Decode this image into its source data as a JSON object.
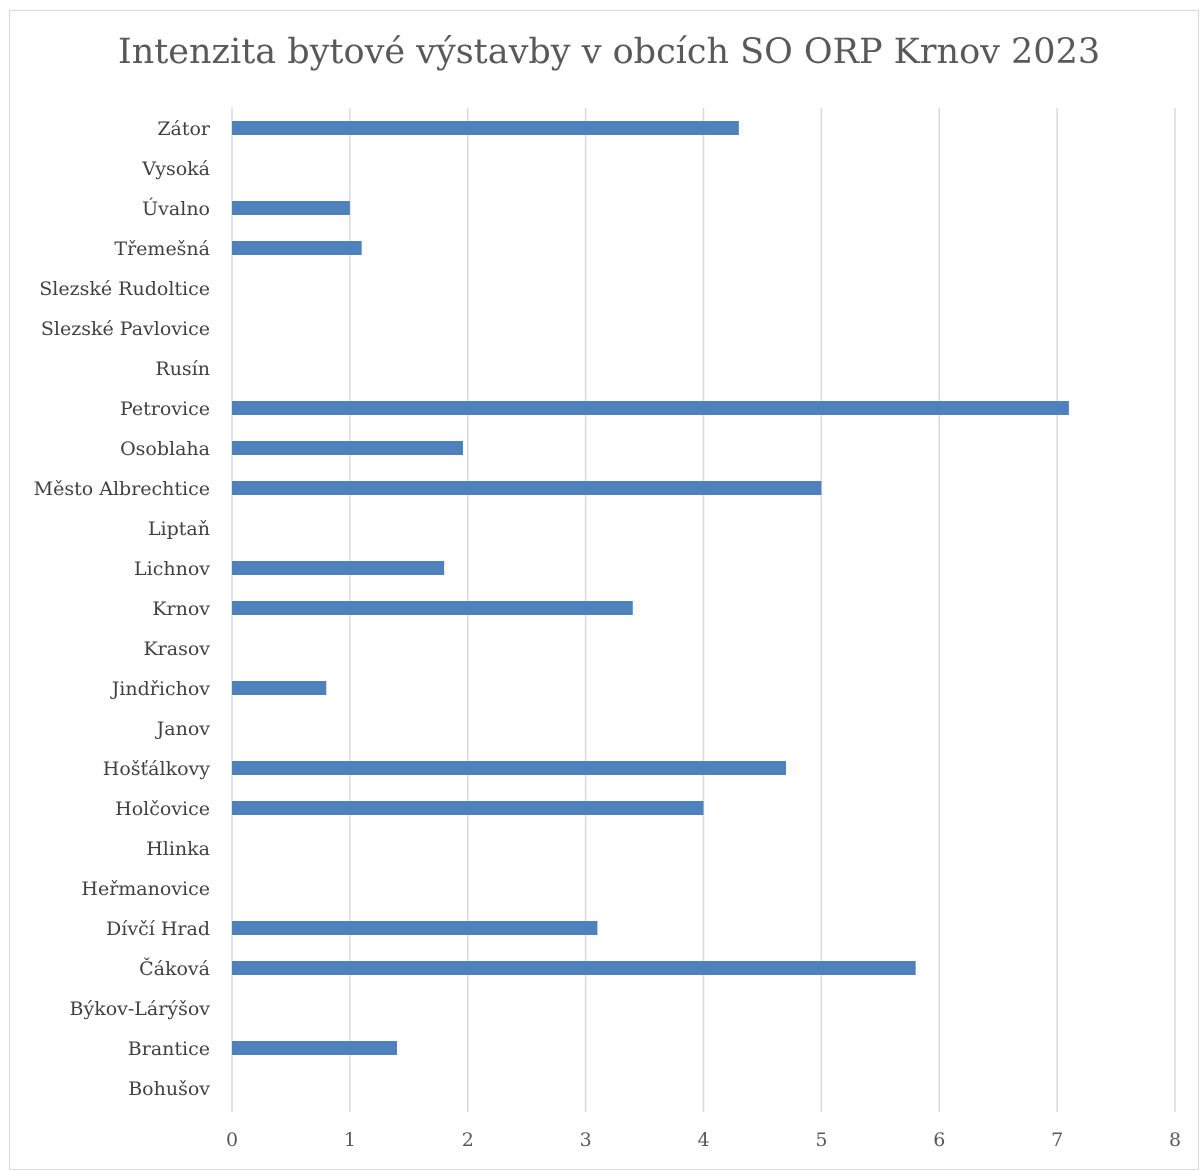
{
  "chart_data": {
    "type": "bar",
    "orientation": "horizontal",
    "title": "Intenzita bytové výstavby v obcích SO ORP Krnov 2023",
    "xlabel": "",
    "ylabel": "",
    "categories": [
      "Zátor",
      "Vysoká",
      "Úvalno",
      "Třemešná",
      "Slezské Rudoltice",
      "Slezské Pavlovice",
      "Rusín",
      "Petrovice",
      "Osoblaha",
      "Město Albrechtice",
      "Liptaň",
      "Lichnov",
      "Krnov",
      "Krasov",
      "Jindřichov",
      "Janov",
      "Hošťálkovy",
      "Holčovice",
      "Hlinka",
      "Heřmanovice",
      "Dívčí Hrad",
      "Čáková",
      "Býkov-Lárýšov",
      "Brantice",
      "Bohušov"
    ],
    "values": [
      4.3,
      0,
      1.0,
      1.1,
      0,
      0,
      0,
      7.1,
      1.96,
      5.0,
      0,
      1.8,
      3.4,
      0,
      0.8,
      0,
      4.7,
      4.0,
      0,
      0,
      3.1,
      5.8,
      0,
      1.4,
      0
    ],
    "xlim": [
      0,
      8
    ],
    "xticks": [
      "0",
      "1",
      "2",
      "3",
      "4",
      "5",
      "6",
      "7",
      "8"
    ],
    "grid": "vertical",
    "legend": "none",
    "bar_color": "#4f81bd",
    "grid_color": "#d9d9d9"
  }
}
